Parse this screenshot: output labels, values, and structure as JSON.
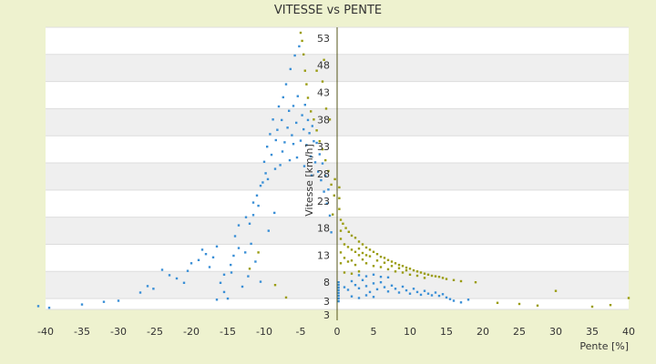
{
  "chart_data": {
    "type": "scatter",
    "title": "VITESSE vs PENTE",
    "xlabel": "Pente [%]",
    "ylabel": "Vitesse [km/h]",
    "xlim": [
      -40,
      40
    ],
    "ylim": [
      3,
      55
    ],
    "x_ticks": [
      "-40",
      "-35",
      "-30",
      "-25",
      "-20",
      "-15",
      "-10",
      "-5",
      "0",
      "5",
      "10",
      "15",
      "20",
      "25",
      "30",
      "35",
      "40"
    ],
    "y_ticks": [
      "3",
      "3",
      "8",
      "13",
      "18",
      "23",
      "28",
      "33",
      "38",
      "43",
      "48",
      "53"
    ],
    "band_colors": [
      "#ffffff",
      "#efefef"
    ],
    "grid": true,
    "series": [
      {
        "color": "#3a8fd6",
        "points": [
          [
            -41,
            3.6
          ],
          [
            -39.5,
            3.3
          ],
          [
            -35,
            3.9
          ],
          [
            -32,
            4.4
          ],
          [
            -30,
            4.6
          ],
          [
            -27,
            6.1
          ],
          [
            -26,
            7.3
          ],
          [
            -25.2,
            6.8
          ],
          [
            -24,
            10.3
          ],
          [
            -23,
            9.3
          ],
          [
            -22,
            8.7
          ],
          [
            -21,
            7.9
          ],
          [
            -20.5,
            10.1
          ],
          [
            -20,
            11.5
          ],
          [
            -19,
            12.1
          ],
          [
            -18.5,
            14.0
          ],
          [
            -18,
            13.2
          ],
          [
            -17.5,
            10.8
          ],
          [
            -17,
            12.6
          ],
          [
            -16.5,
            14.6
          ],
          [
            -16,
            7.9
          ],
          [
            -15.5,
            9.4
          ],
          [
            -15,
            5.0
          ],
          [
            -14.6,
            11.2
          ],
          [
            -14.2,
            12.9
          ],
          [
            -14,
            16.5
          ],
          [
            -13.5,
            18.5
          ],
          [
            -13,
            7.2
          ],
          [
            -12.6,
            13.5
          ],
          [
            -12.2,
            9.1
          ],
          [
            -12,
            18.8
          ],
          [
            -11.8,
            15.1
          ],
          [
            -11.5,
            20.4
          ],
          [
            -11.2,
            11.8
          ],
          [
            -11,
            24.0
          ],
          [
            -10.8,
            22.1
          ],
          [
            -10.5,
            8.1
          ],
          [
            -10.2,
            26.4
          ],
          [
            -10,
            30.2
          ],
          [
            -9.8,
            28.1
          ],
          [
            -9.6,
            33.0
          ],
          [
            -9.4,
            17.5
          ],
          [
            -9.2,
            35.3
          ],
          [
            -9,
            31.5
          ],
          [
            -8.8,
            38.0
          ],
          [
            -8.6,
            20.8
          ],
          [
            -8.4,
            34.2
          ],
          [
            -8.2,
            36.1
          ],
          [
            -8,
            40.4
          ],
          [
            -7.8,
            29.6
          ],
          [
            -7.6,
            37.9
          ],
          [
            -7.4,
            42.1
          ],
          [
            -7.2,
            33.8
          ],
          [
            -7,
            44.5
          ],
          [
            -6.8,
            36.5
          ],
          [
            -6.6,
            39.6
          ],
          [
            -6.4,
            47.3
          ],
          [
            -6.2,
            35.1
          ],
          [
            -6,
            40.5
          ],
          [
            -5.8,
            49.8
          ],
          [
            -5.6,
            37.4
          ],
          [
            -5.4,
            42.3
          ],
          [
            -5.2,
            51.5
          ],
          [
            -5,
            34.1
          ],
          [
            -4.8,
            38.8
          ],
          [
            -4.6,
            36.2
          ],
          [
            -4.4,
            40.7
          ],
          [
            -4.2,
            33.3
          ],
          [
            -4,
            37.9
          ],
          [
            -3.8,
            35.5
          ],
          [
            -3.6,
            31.2
          ],
          [
            -3.4,
            36.8
          ],
          [
            -3.2,
            34.0
          ],
          [
            -3,
            30.1
          ],
          [
            -2.8,
            33.7
          ],
          [
            -2.6,
            28.4
          ],
          [
            -2.4,
            31.6
          ],
          [
            -2.2,
            26.8
          ],
          [
            -2,
            29.9
          ],
          [
            -1.8,
            24.7
          ],
          [
            -1.6,
            27.6
          ],
          [
            -1.4,
            22.5
          ],
          [
            -1.2,
            25.1
          ],
          [
            -1,
            20.3
          ],
          [
            -0.8,
            17.2
          ],
          [
            -6.5,
            30.5
          ],
          [
            -7.5,
            32.1
          ],
          [
            -8.5,
            28.9
          ],
          [
            -9.5,
            27.0
          ],
          [
            -10.5,
            25.8
          ],
          [
            -11.5,
            22.7
          ],
          [
            -12.5,
            20.0
          ],
          [
            -13.5,
            14.3
          ],
          [
            -14.5,
            9.8
          ],
          [
            -15.5,
            6.2
          ],
          [
            -16.5,
            4.8
          ],
          [
            -6,
            33.5
          ],
          [
            -5.5,
            31.0
          ],
          [
            -4.5,
            29.4
          ],
          [
            -3.5,
            27.7
          ],
          [
            1,
            7.1
          ],
          [
            1.5,
            6.6
          ],
          [
            2,
            8.2
          ],
          [
            2.5,
            7.5
          ],
          [
            3,
            6.9
          ],
          [
            3.5,
            8.4
          ],
          [
            4,
            7.3
          ],
          [
            4.5,
            6.2
          ],
          [
            5,
            7.8
          ],
          [
            5.5,
            6.7
          ],
          [
            6,
            8.0
          ],
          [
            6.5,
            7.1
          ],
          [
            7,
            6.3
          ],
          [
            7.5,
            7.4
          ],
          [
            8,
            6.8
          ],
          [
            8.5,
            6.1
          ],
          [
            9,
            7.2
          ],
          [
            9.5,
            6.5
          ],
          [
            10,
            5.9
          ],
          [
            10.5,
            6.8
          ],
          [
            11,
            6.2
          ],
          [
            11.5,
            5.7
          ],
          [
            12,
            6.4
          ],
          [
            12.5,
            5.9
          ],
          [
            13,
            5.6
          ],
          [
            13.5,
            6.1
          ],
          [
            14,
            5.5
          ],
          [
            14.5,
            5.8
          ],
          [
            15,
            5.2
          ],
          [
            15.5,
            4.9
          ],
          [
            16,
            4.6
          ],
          [
            17,
            4.3
          ],
          [
            18,
            4.8
          ],
          [
            3,
            9.3
          ],
          [
            4,
            9.1
          ],
          [
            5,
            9.4
          ],
          [
            6,
            9.0
          ],
          [
            7,
            8.9
          ],
          [
            2,
            5.4
          ],
          [
            3,
            5.1
          ],
          [
            4,
            5.6
          ],
          [
            5,
            5.3
          ],
          [
            0.2,
            4.5
          ],
          [
            0.2,
            5.0
          ],
          [
            0.2,
            5.5
          ],
          [
            0.2,
            6.0
          ],
          [
            0.2,
            6.5
          ],
          [
            0.2,
            7.0
          ],
          [
            0.2,
            7.5
          ],
          [
            0.2,
            8.0
          ]
        ]
      },
      {
        "color": "#9a9c10",
        "points": [
          [
            -5,
            54
          ],
          [
            -4.8,
            52.5
          ],
          [
            -4.6,
            50.0
          ],
          [
            -4.4,
            47.0
          ],
          [
            -4.2,
            44.5
          ],
          [
            -4,
            42.0
          ],
          [
            -3.6,
            39.5
          ],
          [
            -3.2,
            38.0
          ],
          [
            -2.8,
            36.0
          ],
          [
            -2.4,
            34.0
          ],
          [
            -2,
            32.5
          ],
          [
            -1.6,
            30.5
          ],
          [
            -1.2,
            28.5
          ],
          [
            -0.8,
            26.0
          ],
          [
            -0.4,
            24.0
          ],
          [
            -1.5,
            40.0
          ],
          [
            -1.0,
            38.0
          ],
          [
            -2.0,
            45.0
          ],
          [
            -2.8,
            47.0
          ],
          [
            -1.8,
            49.0
          ],
          [
            0.5,
            19.5
          ],
          [
            0.8,
            18.8
          ],
          [
            1.2,
            18.0
          ],
          [
            1.6,
            17.3
          ],
          [
            2,
            16.6
          ],
          [
            2.5,
            16.2
          ],
          [
            3,
            15.5
          ],
          [
            3.5,
            15.0
          ],
          [
            4,
            14.4
          ],
          [
            4.5,
            14.0
          ],
          [
            5,
            13.6
          ],
          [
            5.5,
            13.2
          ],
          [
            6,
            12.7
          ],
          [
            6.5,
            12.5
          ],
          [
            7,
            12.1
          ],
          [
            7.5,
            11.8
          ],
          [
            8,
            11.5
          ],
          [
            8.5,
            11.2
          ],
          [
            9,
            11.0
          ],
          [
            9.5,
            10.7
          ],
          [
            10,
            10.5
          ],
          [
            10.5,
            10.2
          ],
          [
            11,
            10.0
          ],
          [
            11.5,
            9.8
          ],
          [
            12,
            9.6
          ],
          [
            12.5,
            9.4
          ],
          [
            13,
            9.2
          ],
          [
            13.5,
            9.1
          ],
          [
            14,
            9.0
          ],
          [
            14.5,
            8.8
          ],
          [
            15,
            8.6
          ],
          [
            16,
            8.4
          ],
          [
            17,
            8.2
          ],
          [
            19,
            8.0
          ],
          [
            1,
            12.5
          ],
          [
            1.5,
            11.8
          ],
          [
            2,
            12.0
          ],
          [
            2.5,
            11.2
          ],
          [
            3,
            13.0
          ],
          [
            3.5,
            12.2
          ],
          [
            4,
            11.5
          ],
          [
            4.5,
            12.8
          ],
          [
            5,
            11.0
          ],
          [
            5.5,
            12.0
          ],
          [
            6,
            10.8
          ],
          [
            6.5,
            11.6
          ],
          [
            7,
            10.4
          ],
          [
            7.5,
            11.0
          ],
          [
            8,
            10.0
          ],
          [
            8.5,
            10.6
          ],
          [
            9,
            9.8
          ],
          [
            9.5,
            10.2
          ],
          [
            10,
            9.4
          ],
          [
            11,
            9.2
          ],
          [
            12,
            8.8
          ],
          [
            1,
            15.0
          ],
          [
            1.5,
            14.5
          ],
          [
            2,
            14.0
          ],
          [
            2.5,
            13.6
          ],
          [
            3,
            14.2
          ],
          [
            3.5,
            13.4
          ],
          [
            4,
            13.0
          ],
          [
            0.5,
            13.5
          ],
          [
            0.5,
            11.5
          ],
          [
            0.5,
            16.0
          ],
          [
            0.5,
            17.5
          ],
          [
            1,
            9.8
          ],
          [
            2,
            9.6
          ],
          [
            3,
            10.0
          ],
          [
            22,
            4.2
          ],
          [
            25,
            4.0
          ],
          [
            27.5,
            3.7
          ],
          [
            30,
            6.4
          ],
          [
            35,
            3.5
          ],
          [
            37.5,
            3.8
          ],
          [
            40,
            5.1
          ],
          [
            -12,
            10.5
          ],
          [
            -10.8,
            13.5
          ],
          [
            -8.5,
            7.5
          ],
          [
            -7,
            5.2
          ],
          [
            0.3,
            21.5
          ],
          [
            0.3,
            23.5
          ],
          [
            0.3,
            25.5
          ],
          [
            -0.3,
            27.0
          ],
          [
            -0.6,
            20.5
          ]
        ]
      }
    ]
  }
}
